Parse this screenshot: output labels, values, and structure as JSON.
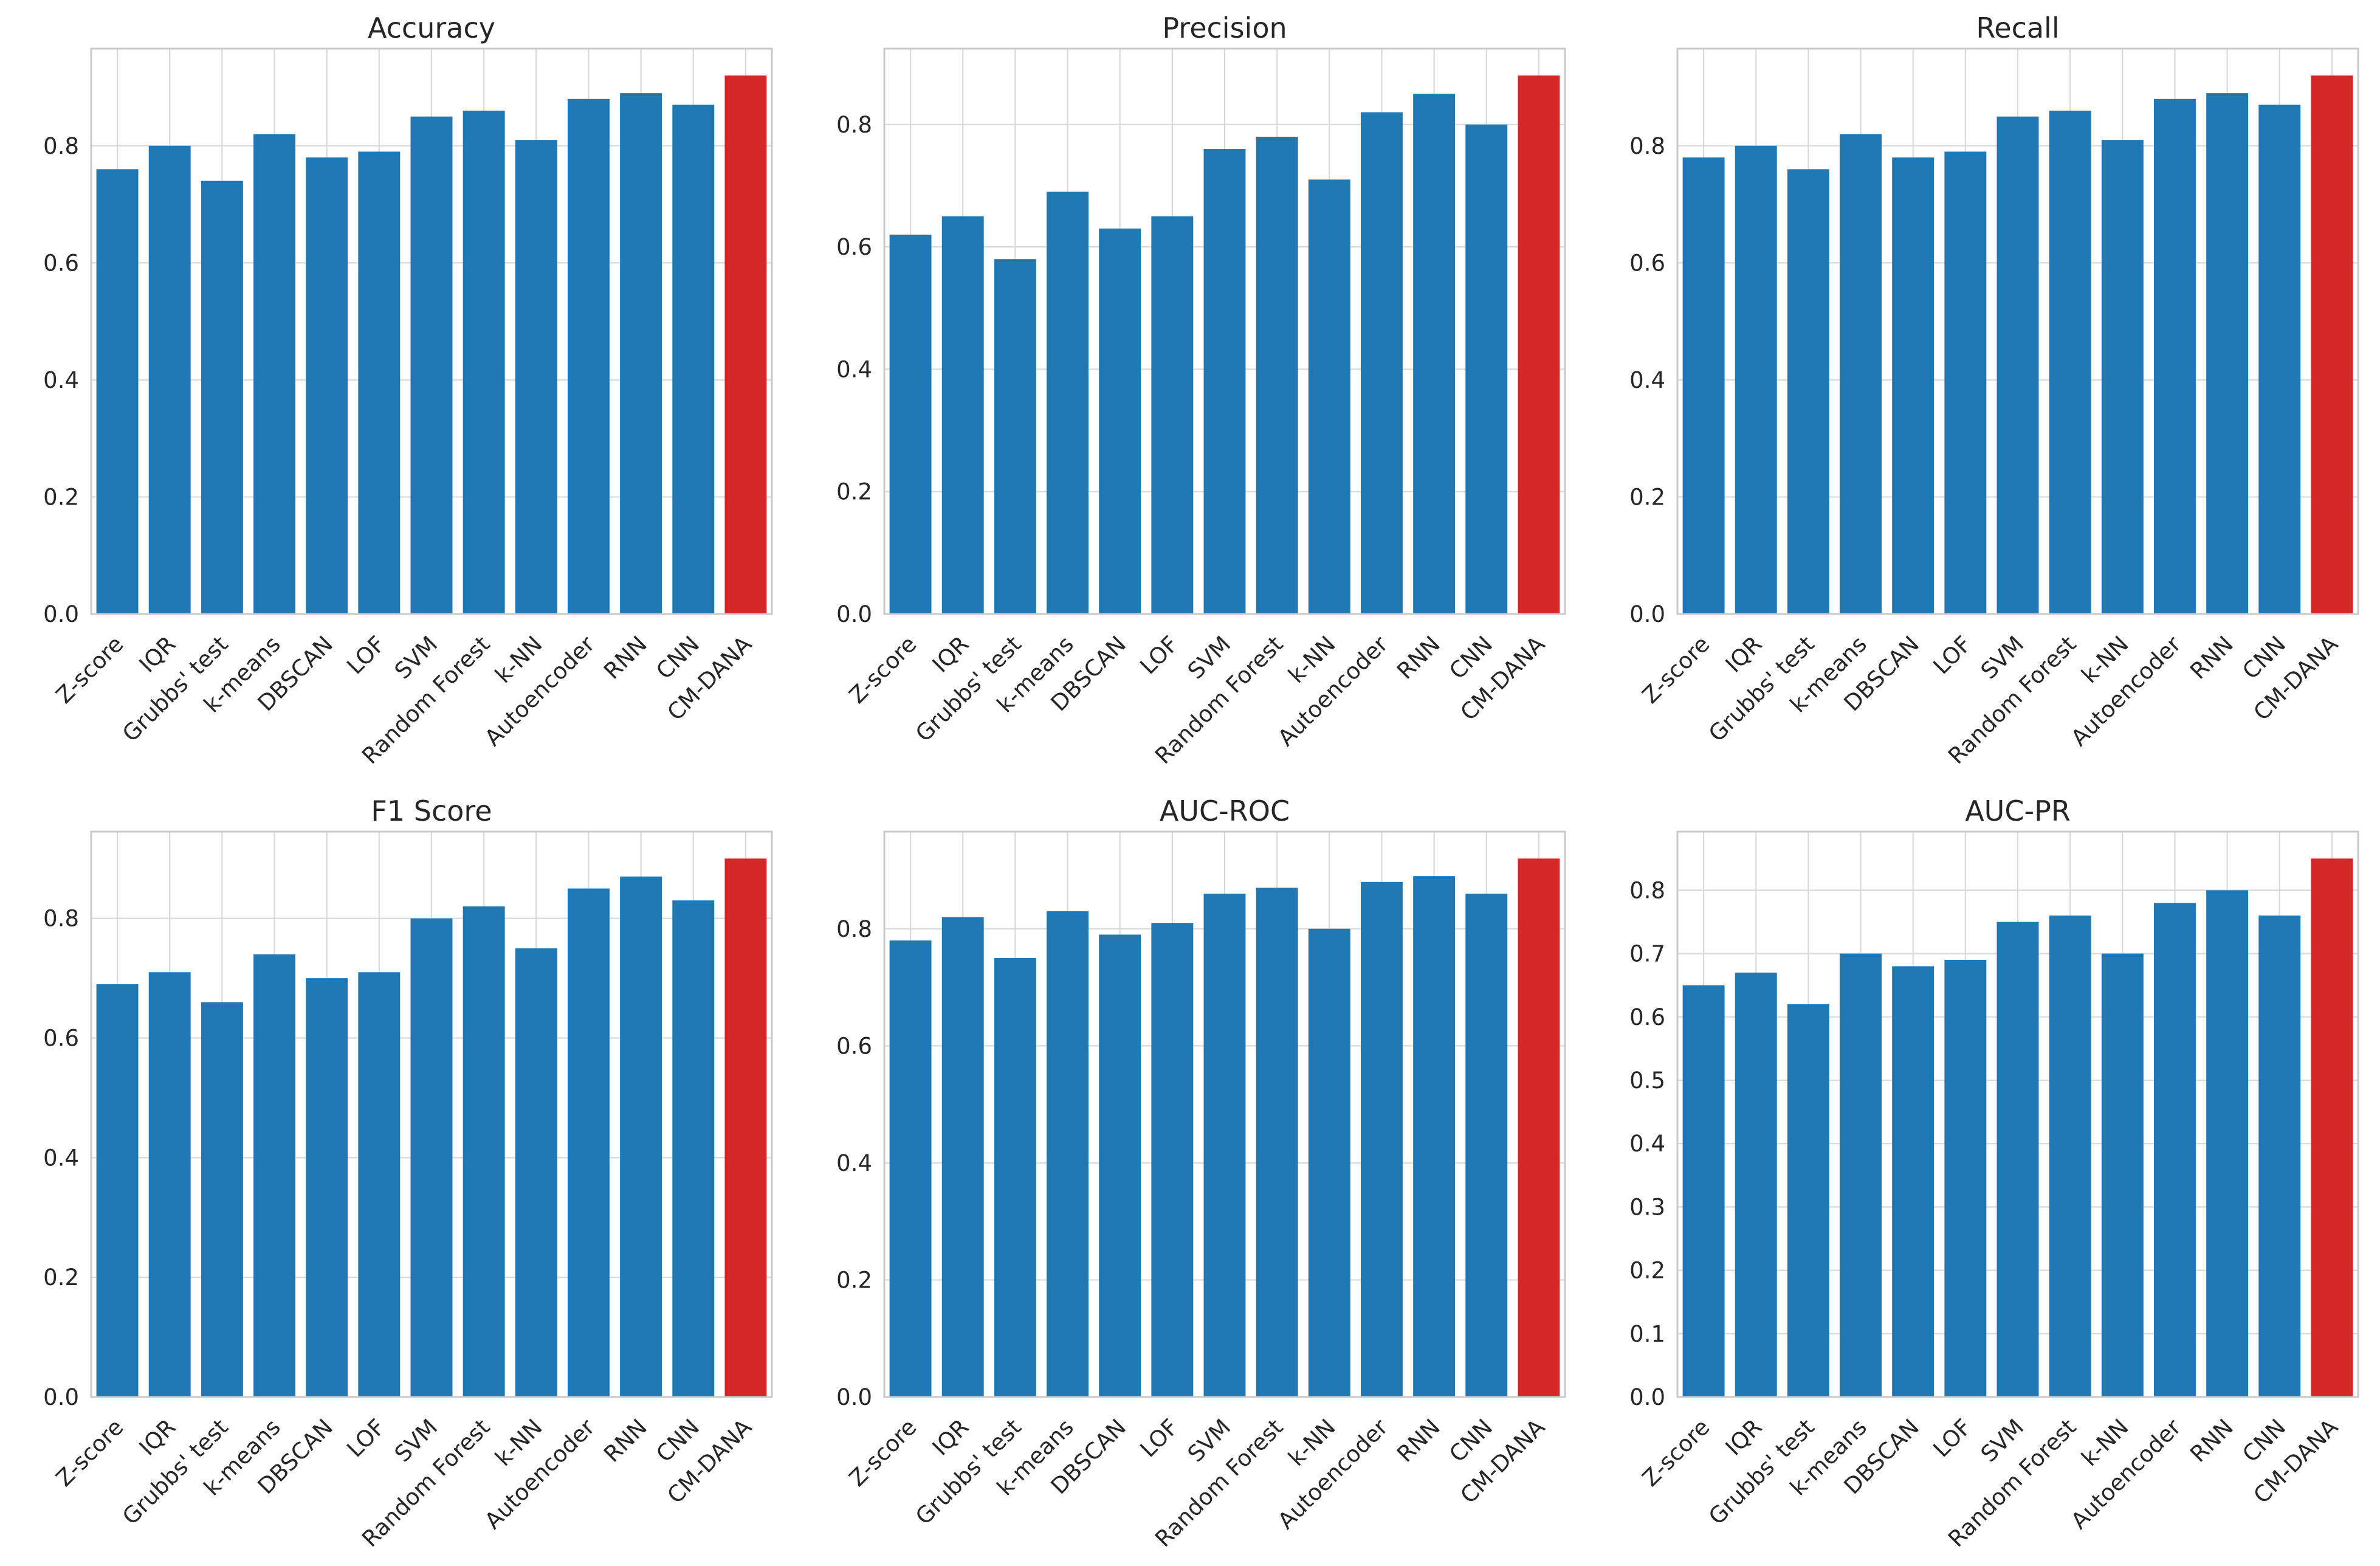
{
  "figure": {
    "background": "#ffffff",
    "text_color": "#262626",
    "grid_color": "#d9d9d9",
    "spine_color": "#c9c9c9"
  },
  "chart_data": {
    "type": "bar",
    "layout": "2x3-grid",
    "grid": true,
    "legend": "none",
    "categories": [
      "Z-score",
      "IQR",
      "Grubbs' test",
      "k-means",
      "DBSCAN",
      "LOF",
      "SVM",
      "Random Forest",
      "k-NN",
      "Autoencoder",
      "RNN",
      "CNN",
      "CM-DANA"
    ],
    "highlight_category": "CM-DANA",
    "bar_color": "#1f77b4",
    "highlight_color": "#d62728",
    "ylim_rule": "0 to max*1.05",
    "charts": [
      {
        "title": "Accuracy",
        "ytick_step": 0.2,
        "yticks": [
          "0.0",
          "0.2",
          "0.4",
          "0.6",
          "0.8"
        ],
        "values": [
          0.76,
          0.8,
          0.74,
          0.82,
          0.78,
          0.79,
          0.85,
          0.86,
          0.81,
          0.88,
          0.89,
          0.87,
          0.92
        ]
      },
      {
        "title": "Precision",
        "ytick_step": 0.2,
        "yticks": [
          "0.0",
          "0.2",
          "0.4",
          "0.6",
          "0.8"
        ],
        "values": [
          0.62,
          0.65,
          0.58,
          0.69,
          0.63,
          0.65,
          0.76,
          0.78,
          0.71,
          0.82,
          0.85,
          0.8,
          0.88
        ]
      },
      {
        "title": "Recall",
        "ytick_step": 0.2,
        "yticks": [
          "0.0",
          "0.2",
          "0.4",
          "0.6",
          "0.8"
        ],
        "values": [
          0.78,
          0.8,
          0.76,
          0.82,
          0.78,
          0.79,
          0.85,
          0.86,
          0.81,
          0.88,
          0.89,
          0.87,
          0.92
        ]
      },
      {
        "title": "F1 Score",
        "ytick_step": 0.2,
        "yticks": [
          "0.0",
          "0.2",
          "0.4",
          "0.6",
          "0.8"
        ],
        "values": [
          0.69,
          0.71,
          0.66,
          0.74,
          0.7,
          0.71,
          0.8,
          0.82,
          0.75,
          0.85,
          0.87,
          0.83,
          0.9
        ]
      },
      {
        "title": "AUC-ROC",
        "ytick_step": 0.2,
        "yticks": [
          "0.0",
          "0.2",
          "0.4",
          "0.6",
          "0.8"
        ],
        "values": [
          0.78,
          0.82,
          0.75,
          0.83,
          0.79,
          0.81,
          0.86,
          0.87,
          0.8,
          0.88,
          0.89,
          0.86,
          0.92
        ]
      },
      {
        "title": "AUC-PR",
        "ytick_step": 0.1,
        "yticks": [
          "0.0",
          "0.1",
          "0.2",
          "0.3",
          "0.4",
          "0.5",
          "0.6",
          "0.7",
          "0.8"
        ],
        "values": [
          0.65,
          0.67,
          0.62,
          0.7,
          0.68,
          0.69,
          0.75,
          0.76,
          0.7,
          0.78,
          0.8,
          0.76,
          0.85
        ]
      }
    ]
  }
}
